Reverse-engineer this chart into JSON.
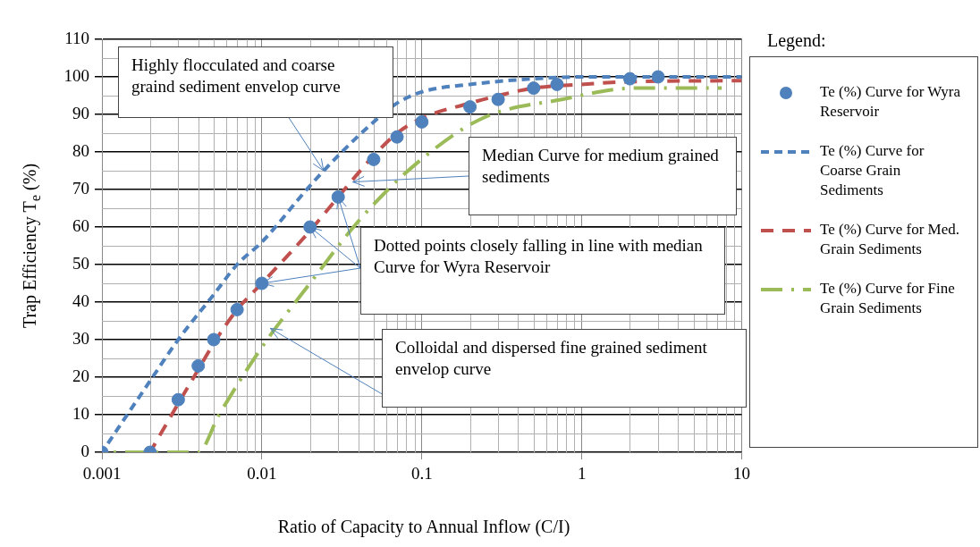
{
  "chart_data": {
    "type": "line",
    "xlabel": "Ratio of Capacity to Annual Inflow (C/I)",
    "ylabel": "Trap Efficiency T$_{e}$ (%)",
    "legend_title": "Legend:",
    "legend": "right",
    "log": "x",
    "grid": true,
    "xlim": [
      0.001,
      10
    ],
    "xticks": [
      0.001,
      0.01,
      0.1,
      1,
      10
    ],
    "ylim": [
      0,
      110
    ],
    "yticks": [
      0,
      10,
      20,
      30,
      40,
      50,
      60,
      70,
      80,
      90,
      100,
      110
    ],
    "annotations": [
      {
        "text": "Highly flocculated and coarse graind sediment envelop curve",
        "x": 0.0243,
        "y": 75
      },
      {
        "text": "Median Curve for medium grained sediments",
        "x": 0.037,
        "y": 72
      },
      {
        "text": "Dotted points closely falling in line with median Curve for Wyra Reservoir",
        "x": 0.01,
        "y": 45
      },
      {
        "text": "Colloidal and dispersed fine grained sediment envelop curve",
        "x": 0.0113,
        "y": 33
      }
    ],
    "series": [
      {
        "name": "Te (%) Curve for Wyra Reservoir",
        "type": "scatter",
        "marker": "circle",
        "color": "#4f81bd",
        "x": [
          0.001,
          0.002,
          0.003,
          0.004,
          0.005,
          0.007,
          0.01,
          0.02,
          0.03,
          0.05,
          0.07,
          0.1,
          0.2,
          0.3,
          0.5,
          0.7,
          2,
          3
        ],
        "values": [
          0,
          0,
          14,
          23,
          30,
          38,
          45,
          60,
          68,
          78,
          84,
          88,
          92,
          94,
          97,
          98,
          99.5,
          100
        ]
      },
      {
        "name": "Te (%) Curve for Coarse Grain Sediments",
        "type": "line",
        "line_style": "dashed",
        "color": "#4f81bd",
        "x": [
          0.001,
          0.002,
          0.003,
          0.005,
          0.007,
          0.01,
          0.02,
          0.03,
          0.05,
          0.07,
          0.1,
          0.2,
          0.5,
          1,
          10
        ],
        "values": [
          0,
          19,
          30,
          42,
          50,
          56,
          71,
          79,
          88,
          93,
          96,
          98,
          99.5,
          100,
          100
        ]
      },
      {
        "name": "Te (%) Curve for Med. Grain Sediments",
        "type": "line",
        "line_style": "dashed",
        "color": "#c0504d",
        "x": [
          0.002,
          0.003,
          0.004,
          0.005,
          0.007,
          0.01,
          0.02,
          0.03,
          0.05,
          0.07,
          0.1,
          0.2,
          0.3,
          0.5,
          1,
          2,
          10
        ],
        "values": [
          0,
          13,
          22,
          29,
          38,
          45,
          59,
          68,
          79,
          85,
          89,
          93,
          95,
          97,
          98,
          98.7,
          99
        ]
      },
      {
        "name": "Te (%) Curve for Fine Grain Sediments",
        "type": "line",
        "line_style": "dashed",
        "color": "#9bbb59",
        "x": [
          0.001,
          0.004,
          0.0054,
          0.01,
          0.02,
          0.041,
          0.093,
          0.24,
          0.75,
          2.17,
          7.5
        ],
        "values": [
          0,
          0,
          10,
          28,
          45,
          62,
          77,
          89,
          94,
          97,
          97
        ]
      }
    ]
  }
}
